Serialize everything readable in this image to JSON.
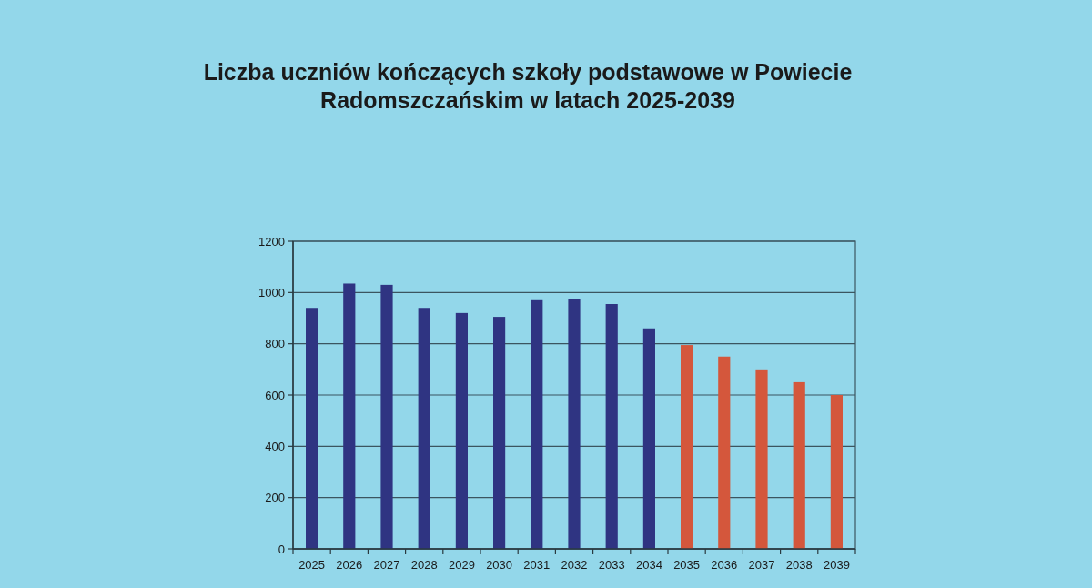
{
  "chart_data": {
    "type": "bar",
    "title": "Liczba uczniów kończących szkoły podstawowe w Powiecie Radomszczańskim w latach 2025-2039",
    "categories": [
      "2025",
      "2026",
      "2027",
      "2028",
      "2029",
      "2030",
      "2031",
      "2032",
      "2033",
      "2034",
      "2035",
      "2036",
      "2037",
      "2038",
      "2039"
    ],
    "values": [
      940,
      1035,
      1030,
      940,
      920,
      905,
      970,
      975,
      955,
      860,
      795,
      750,
      700,
      650,
      600
    ],
    "colors": [
      "#2f3482",
      "#2f3482",
      "#2f3482",
      "#2f3482",
      "#2f3482",
      "#2f3482",
      "#2f3482",
      "#2f3482",
      "#2f3482",
      "#2f3482",
      "#d4573c",
      "#d4573c",
      "#d4573c",
      "#d4573c",
      "#d4573c"
    ],
    "ylim": [
      0,
      1200
    ],
    "yticks": [
      0,
      200,
      400,
      600,
      800,
      1000,
      1200
    ],
    "grid": "y"
  }
}
